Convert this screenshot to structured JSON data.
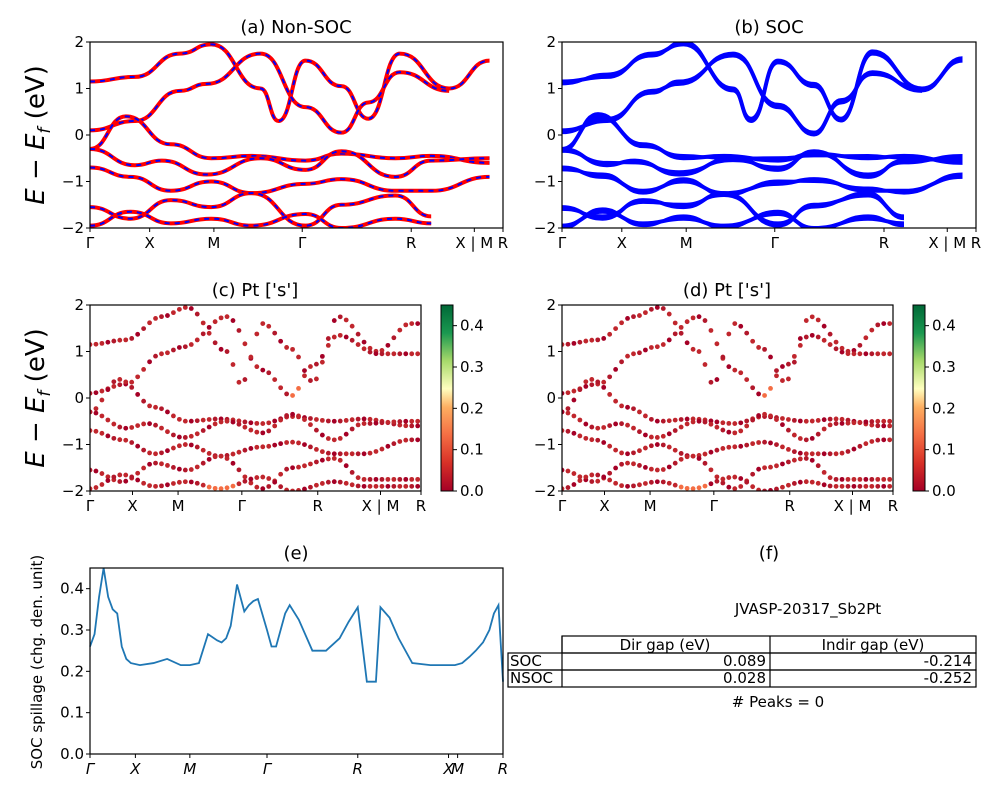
{
  "figure": {
    "panel_a_title": "(a) Non-SOC",
    "panel_b_title": "(b) SOC",
    "panel_c_title": "(c)  Pt ['s']",
    "panel_d_title": "(d) Pt ['s']",
    "panel_e_title": "(e)",
    "panel_f_title": "(f)",
    "band_ylabel_main": "E − E",
    "band_ylabel_sub": "f",
    "band_ylabel_unit": " (eV)",
    "spillage_ylabel": "SOC spillage (chg. den. unit)",
    "kpath_labels": [
      "Γ",
      "X",
      "M",
      "Γ",
      "R",
      "X | M",
      "R"
    ],
    "spillage_kpath_labels": [
      "Γ",
      "X",
      "M",
      "Γ",
      "R",
      "X",
      "M",
      "R"
    ],
    "band_yticks": [
      "2",
      "1",
      "0",
      "−1",
      "−2"
    ],
    "colorbar_ticks": [
      "0.0",
      "0.1",
      "0.2",
      "0.3",
      "0.4"
    ],
    "spillage_yticks": [
      "0.0",
      "0.1",
      "0.2",
      "0.3",
      "0.4"
    ]
  },
  "info": {
    "material": "JVASP-20317_Sb2Pt",
    "col_dir": "Dir gap (eV)",
    "col_indir": "Indir gap (eV)",
    "row_soc": "SOC",
    "row_nsoc": "NSOC",
    "soc_dir": "0.089",
    "soc_indir": "-0.214",
    "nsoc_dir": "0.028",
    "nsoc_indir": "-0.252",
    "peaks": "# Peaks = 0"
  },
  "chart_data": [
    {
      "type": "line",
      "panel": "a",
      "title": "(a) Non-SOC",
      "ylabel": "E − E_f (eV)",
      "ylim": [
        -2,
        2
      ],
      "kpath": [
        "Γ",
        "X",
        "M",
        "Γ",
        "R",
        "X | M",
        "R"
      ],
      "series_colors": [
        "#ff0000",
        "#0000ff"
      ],
      "style": "red solid with blue dashed overlay",
      "bands": [
        {
          "x": [
            0,
            0.5,
            1,
            1.35,
            1.9,
            2.1,
            2.4,
            2.8,
            3.1,
            3.45,
            4.0,
            4.45
          ],
          "y": [
            1.15,
            1.25,
            1.75,
            1.95,
            1.0,
            0.3,
            1.6,
            1.05,
            0.35,
            1.75,
            1.0,
            1.6
          ]
        },
        {
          "x": [
            0,
            0.5,
            1,
            1.3,
            1.9,
            2.4,
            2.8,
            3.1,
            3.45,
            4.0
          ],
          "y": [
            0.1,
            0.3,
            0.95,
            1.1,
            1.75,
            0.6,
            0.05,
            0.7,
            1.35,
            0.95
          ]
        },
        {
          "x": [
            0,
            0.4,
            0.9,
            1.35,
            1.8,
            2.4,
            2.8,
            3.4,
            3.8,
            4.45
          ],
          "y": [
            -0.3,
            0.4,
            -0.2,
            -0.5,
            -0.45,
            -0.55,
            -0.4,
            -0.5,
            -0.45,
            -0.6
          ]
        },
        {
          "x": [
            0,
            0.5,
            0.8,
            1.3,
            1.9,
            2.4,
            2.8,
            3.4,
            3.8,
            4.45
          ],
          "y": [
            -0.3,
            -0.65,
            -0.55,
            -0.85,
            -0.5,
            -0.75,
            -0.35,
            -0.9,
            -0.55,
            -0.5
          ]
        },
        {
          "x": [
            0,
            0.45,
            0.9,
            1.35,
            1.8,
            2.4,
            2.8,
            3.4,
            3.8,
            4.45
          ],
          "y": [
            -0.7,
            -0.9,
            -1.2,
            -1.0,
            -1.25,
            -1.05,
            -0.95,
            -1.2,
            -1.2,
            -0.9
          ]
        },
        {
          "x": [
            0,
            0.45,
            0.9,
            1.35,
            1.8,
            2.4,
            2.8,
            3.4,
            3.8
          ],
          "y": [
            -1.55,
            -1.8,
            -1.4,
            -1.55,
            -1.25,
            -1.95,
            -1.5,
            -1.3,
            -1.75
          ]
        },
        {
          "x": [
            0,
            0.45,
            0.9,
            1.35,
            1.8,
            2.4,
            2.8,
            3.4,
            3.8
          ],
          "y": [
            -1.95,
            -1.65,
            -1.9,
            -1.8,
            -1.95,
            -1.7,
            -2.0,
            -1.8,
            -1.9
          ]
        }
      ]
    },
    {
      "type": "line",
      "panel": "b",
      "title": "(b) SOC",
      "ylim": [
        -2,
        2
      ],
      "kpath": [
        "Γ",
        "X",
        "M",
        "Γ",
        "R",
        "X | M",
        "R"
      ],
      "series_colors": [
        "#0000ff"
      ],
      "style": "thick blue"
    },
    {
      "type": "scatter",
      "panel": "c",
      "title": "(c)  Pt ['s']",
      "ylim": [
        -2,
        2
      ],
      "colorbar_range": [
        0.0,
        0.45
      ],
      "colormap": "RdYlGn",
      "kpath": [
        "Γ",
        "X",
        "M",
        "Γ",
        "R",
        "X | M",
        "R"
      ]
    },
    {
      "type": "scatter",
      "panel": "d",
      "title": "(d) Pt ['s']",
      "ylim": [
        -2,
        2
      ],
      "colorbar_range": [
        0.0,
        0.45
      ],
      "colormap": "RdYlGn",
      "kpath": [
        "Γ",
        "X",
        "M",
        "Γ",
        "R",
        "X | M",
        "R"
      ]
    },
    {
      "type": "line",
      "panel": "e",
      "title": "(e)",
      "ylabel": "SOC spillage (chg. den. unit)",
      "ylim": [
        0.0,
        0.45
      ],
      "color": "#1f77b4",
      "kpath": [
        "Γ",
        "X",
        "M",
        "Γ",
        "R",
        "X",
        "M",
        "R"
      ],
      "x": [
        0,
        0.05,
        0.1,
        0.15,
        0.2,
        0.25,
        0.3,
        0.35,
        0.4,
        0.45,
        0.55,
        0.7,
        0.85,
        1.0,
        1.1,
        1.2,
        1.3,
        1.4,
        1.45,
        1.5,
        1.55,
        1.62,
        1.7,
        1.75,
        1.8,
        1.85,
        1.95,
        2.0,
        2.05,
        2.15,
        2.2,
        2.3,
        2.45,
        2.6,
        2.75,
        2.85,
        2.95,
        3.05,
        3.15,
        3.2,
        3.3,
        3.4,
        3.55,
        3.75,
        3.85,
        3.95,
        4.02,
        4.1,
        4.18,
        4.25,
        4.33,
        4.4,
        4.45,
        4.5,
        4.55
      ],
      "y": [
        0.26,
        0.29,
        0.38,
        0.45,
        0.38,
        0.35,
        0.34,
        0.26,
        0.23,
        0.22,
        0.215,
        0.22,
        0.23,
        0.215,
        0.215,
        0.22,
        0.29,
        0.275,
        0.27,
        0.28,
        0.31,
        0.41,
        0.345,
        0.36,
        0.37,
        0.375,
        0.3,
        0.26,
        0.26,
        0.34,
        0.36,
        0.325,
        0.25,
        0.25,
        0.28,
        0.32,
        0.355,
        0.175,
        0.175,
        0.355,
        0.33,
        0.28,
        0.22,
        0.215,
        0.215,
        0.215,
        0.215,
        0.22,
        0.235,
        0.25,
        0.27,
        0.3,
        0.34,
        0.36,
        0.175
      ]
    }
  ]
}
